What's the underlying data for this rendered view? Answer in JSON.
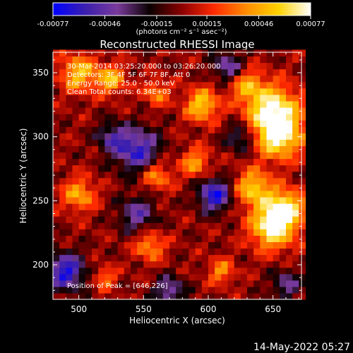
{
  "chart_data": {
    "type": "heatmap",
    "title": "Reconstructed RHESSI Image",
    "xlabel": "Heliocentric X (arcsec)",
    "ylabel": "Heliocentric Y (arcsec)",
    "xlim": [
      480,
      672
    ],
    "ylim": [
      173,
      366
    ],
    "x_ticks": [
      500,
      550,
      600,
      650
    ],
    "y_ticks": [
      200,
      250,
      300,
      350
    ],
    "colorbar": {
      "min": -0.00077,
      "max": 0.00077,
      "tick_values": [
        -0.00077,
        -0.00046,
        -0.00015,
        0.00015,
        0.00046,
        0.00077
      ],
      "tick_labels": [
        "-0.00077",
        "-0.00046",
        "-0.00015",
        "0.00015",
        "0.00046",
        "0.00077"
      ],
      "units_label": "(photons cm⁻² s⁻¹ asec⁻²)",
      "colors": [
        "#0000ff",
        "#3b1fae",
        "#7a3b9c",
        "#0a0000",
        "#8b0000",
        "#ff2a00",
        "#ff8c00",
        "#ffd200",
        "#ffffff"
      ]
    },
    "annotations": [
      "30-Mar-2014 03:25:20.000 to 03:26:20.000",
      "Detectors: 3F 4F 5F 6F 7F 8F, Att 0",
      "Energy Range: 25.0 - 50.0 keV",
      "Clean     Total counts: 6.34E+03"
    ],
    "peak_label": "Position of Peak = [646,226]",
    "peak": [
      646,
      226
    ],
    "hotspots": [
      {
        "x": 650,
        "y": 320,
        "v": 1.0,
        "s": 14
      },
      {
        "x": 655,
        "y": 300,
        "v": 0.85,
        "s": 12
      },
      {
        "x": 650,
        "y": 230,
        "v": 1.0,
        "s": 12
      },
      {
        "x": 660,
        "y": 245,
        "v": 0.8,
        "s": 10
      },
      {
        "x": 635,
        "y": 260,
        "v": 0.75,
        "s": 10
      },
      {
        "x": 595,
        "y": 325,
        "v": 0.75,
        "s": 9
      },
      {
        "x": 590,
        "y": 280,
        "v": 0.55,
        "s": 8
      },
      {
        "x": 500,
        "y": 350,
        "v": 0.7,
        "s": 10
      },
      {
        "x": 525,
        "y": 345,
        "v": 0.65,
        "s": 8
      },
      {
        "x": 500,
        "y": 255,
        "v": 0.6,
        "s": 9
      },
      {
        "x": 560,
        "y": 270,
        "v": 0.55,
        "s": 8
      },
      {
        "x": 555,
        "y": 215,
        "v": 0.55,
        "s": 8
      },
      {
        "x": 560,
        "y": 335,
        "v": 0.5,
        "s": 7
      },
      {
        "x": 610,
        "y": 195,
        "v": 0.5,
        "s": 7
      },
      {
        "x": 630,
        "y": 340,
        "v": 0.55,
        "s": 9
      },
      {
        "x": 520,
        "y": 190,
        "v": 0.45,
        "s": 6
      }
    ],
    "coldspots": [
      {
        "x": 545,
        "y": 290,
        "v": -0.8,
        "s": 12
      },
      {
        "x": 605,
        "y": 255,
        "v": -0.9,
        "s": 9
      },
      {
        "x": 490,
        "y": 195,
        "v": -0.9,
        "s": 10
      },
      {
        "x": 545,
        "y": 240,
        "v": -0.55,
        "s": 10
      },
      {
        "x": 525,
        "y": 300,
        "v": -0.5,
        "s": 8
      },
      {
        "x": 615,
        "y": 355,
        "v": -0.6,
        "s": 8
      },
      {
        "x": 570,
        "y": 180,
        "v": -0.6,
        "s": 8
      },
      {
        "x": 625,
        "y": 300,
        "v": -0.5,
        "s": 8
      },
      {
        "x": 660,
        "y": 185,
        "v": -0.5,
        "s": 8
      }
    ]
  },
  "footer": {
    "timestamp": "14-May-2022 05:27"
  }
}
